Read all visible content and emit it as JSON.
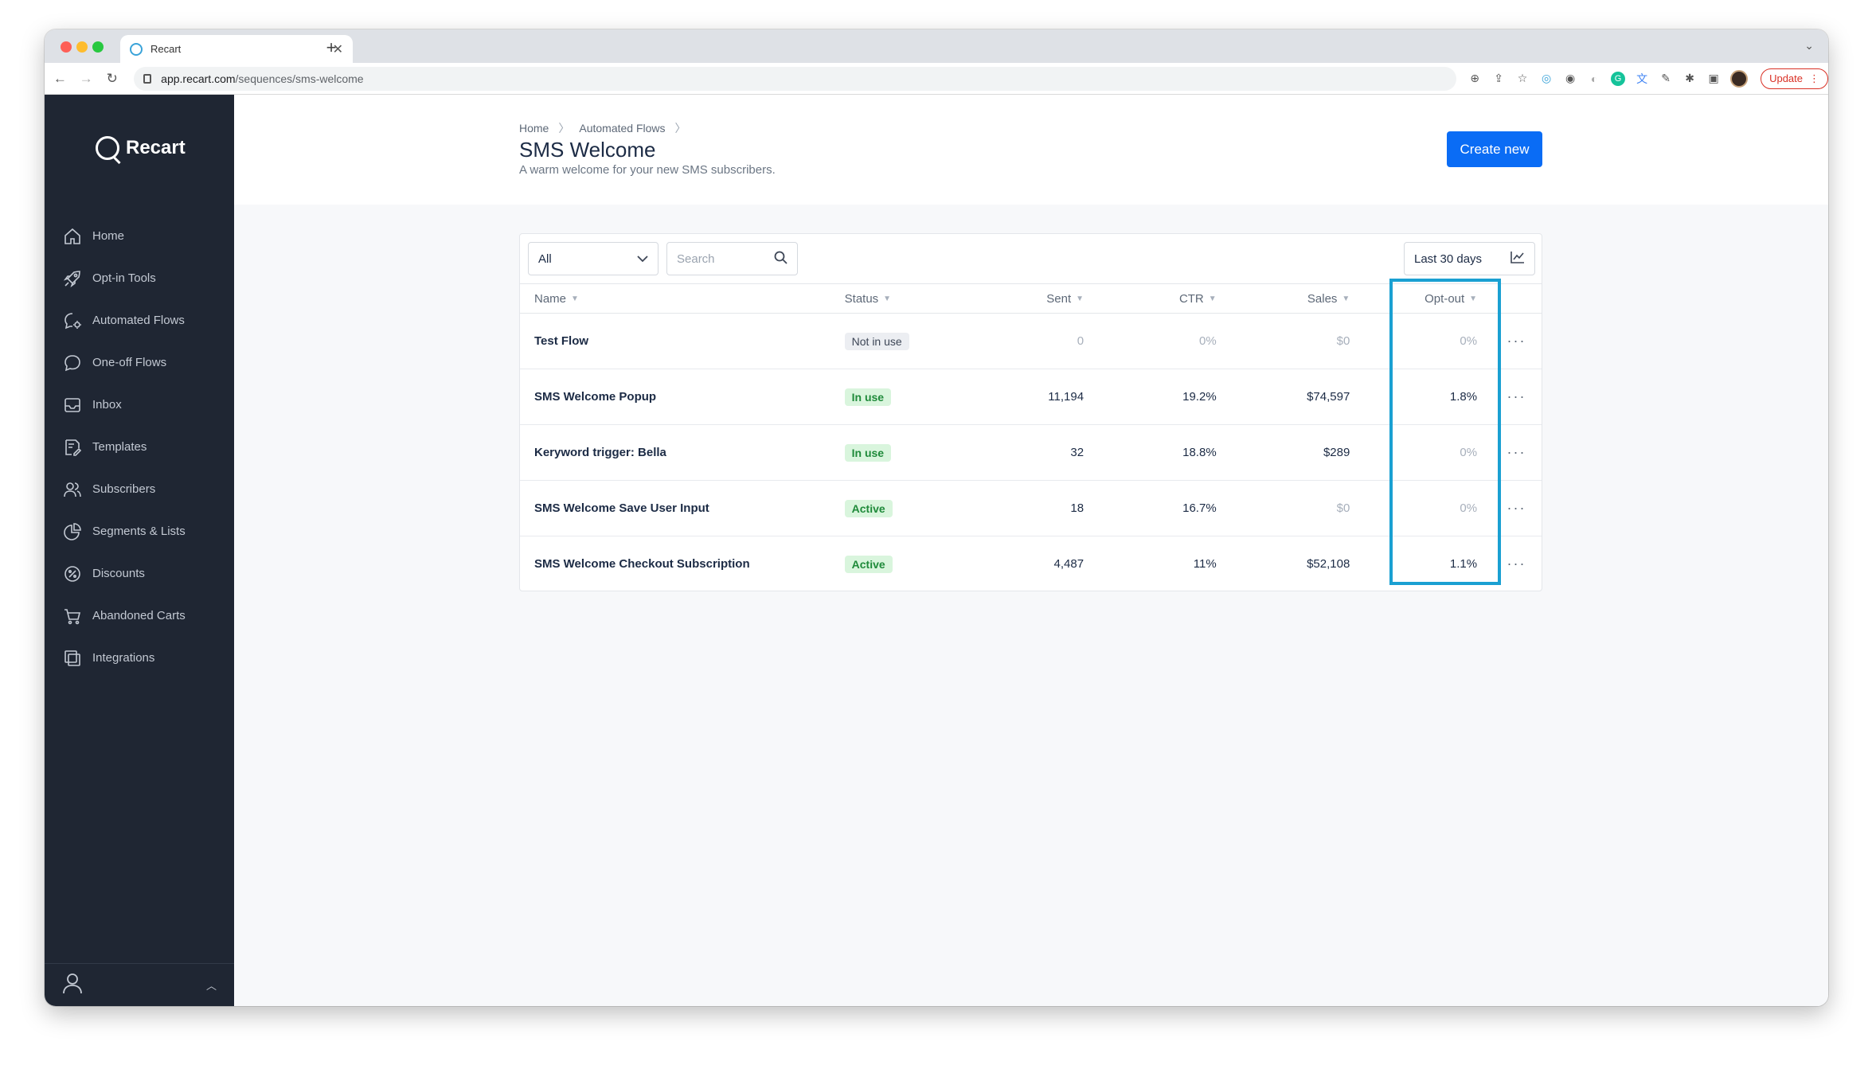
{
  "browser": {
    "tab_title": "Recart",
    "url_host": "app.recart.com",
    "url_path": "/sequences/sms-welcome",
    "update_label": "Update"
  },
  "sidebar": {
    "brand": "Recart",
    "items": [
      {
        "label": "Home",
        "icon": "home-icon"
      },
      {
        "label": "Opt-in Tools",
        "icon": "rocket-icon"
      },
      {
        "label": "Automated Flows",
        "icon": "chat-gear-icon"
      },
      {
        "label": "One-off Flows",
        "icon": "chat-icon"
      },
      {
        "label": "Inbox",
        "icon": "inbox-icon"
      },
      {
        "label": "Templates",
        "icon": "template-icon"
      },
      {
        "label": "Subscribers",
        "icon": "users-icon"
      },
      {
        "label": "Segments & Lists",
        "icon": "pie-chart-icon"
      },
      {
        "label": "Discounts",
        "icon": "percent-icon"
      },
      {
        "label": "Abandoned Carts",
        "icon": "cart-icon"
      },
      {
        "label": "Integrations",
        "icon": "layers-icon"
      }
    ]
  },
  "header": {
    "breadcrumb": [
      "Home",
      "Automated Flows"
    ],
    "title": "SMS Welcome",
    "subtitle": "A warm welcome for your new SMS subscribers.",
    "create_label": "Create new"
  },
  "toolbar": {
    "filter_value": "All",
    "search_placeholder": "Search",
    "date_range": "Last 30 days"
  },
  "table": {
    "columns": [
      "Name",
      "Status",
      "Sent",
      "CTR",
      "Sales",
      "Opt-out"
    ],
    "rows": [
      {
        "name": "Test Flow",
        "status": "Not in use",
        "status_style": "gray",
        "sent": "0",
        "ctr": "0%",
        "sales": "$0",
        "optout": "0%"
      },
      {
        "name": "SMS Welcome Popup",
        "status": "In use",
        "status_style": "green",
        "sent": "11,194",
        "ctr": "19.2%",
        "sales": "$74,597",
        "optout": "1.8%"
      },
      {
        "name": "Keryword trigger: Bella",
        "status": "In use",
        "status_style": "green",
        "sent": "32",
        "ctr": "18.8%",
        "sales": "$289",
        "optout": "0%"
      },
      {
        "name": "SMS Welcome Save User Input",
        "status": "Active",
        "status_style": "green",
        "sent": "18",
        "ctr": "16.7%",
        "sales": "$0",
        "optout": "0%"
      },
      {
        "name": "SMS Welcome Checkout Subscription",
        "status": "Active",
        "status_style": "green",
        "sent": "4,487",
        "ctr": "11%",
        "sales": "$52,108",
        "optout": "1.1%"
      }
    ]
  },
  "colors": {
    "sidebar_bg": "#1f2633",
    "primary": "#0a6cf5",
    "highlight": "#1aa0d2"
  }
}
